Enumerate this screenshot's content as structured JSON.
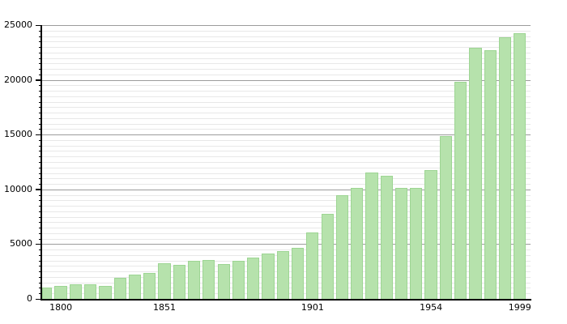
{
  "chart_data": {
    "type": "bar",
    "title": "",
    "description": "Population development bar chart, single green series, no legend",
    "ylim": [
      0,
      25000
    ],
    "y_ticks": [
      0,
      5000,
      10000,
      15000,
      20000,
      25000
    ],
    "y_tick_labels": [
      "0",
      "5000",
      "10000",
      "15000",
      "20000",
      "25000"
    ],
    "minor_grid_step": 500,
    "grid": true,
    "legend_position": "none",
    "x_ticks": [
      {
        "label": "1800",
        "slot": 1
      },
      {
        "label": "1851",
        "slot": 8
      },
      {
        "label": "1901",
        "slot": 18
      },
      {
        "label": "1954",
        "slot": 26
      },
      {
        "label": "1999",
        "slot": 32
      }
    ],
    "values": [
      1000,
      1200,
      1350,
      1300,
      1200,
      1900,
      2200,
      2400,
      3250,
      3100,
      3500,
      3550,
      3200,
      3500,
      3770,
      4150,
      4400,
      4650,
      6100,
      7750,
      9500,
      10100,
      11550,
      11250,
      10100,
      10100,
      11750,
      14850,
      19800,
      22900,
      22700,
      23900,
      24250
    ],
    "colors": {
      "bar_fill": "#b6e2ac",
      "bar_border": "#9dd593",
      "major_grid": "#9c9c9c",
      "minor_grid": "#e8e8e8",
      "axis": "#000000",
      "background": "#ffffff",
      "label_text": "#000000"
    }
  }
}
